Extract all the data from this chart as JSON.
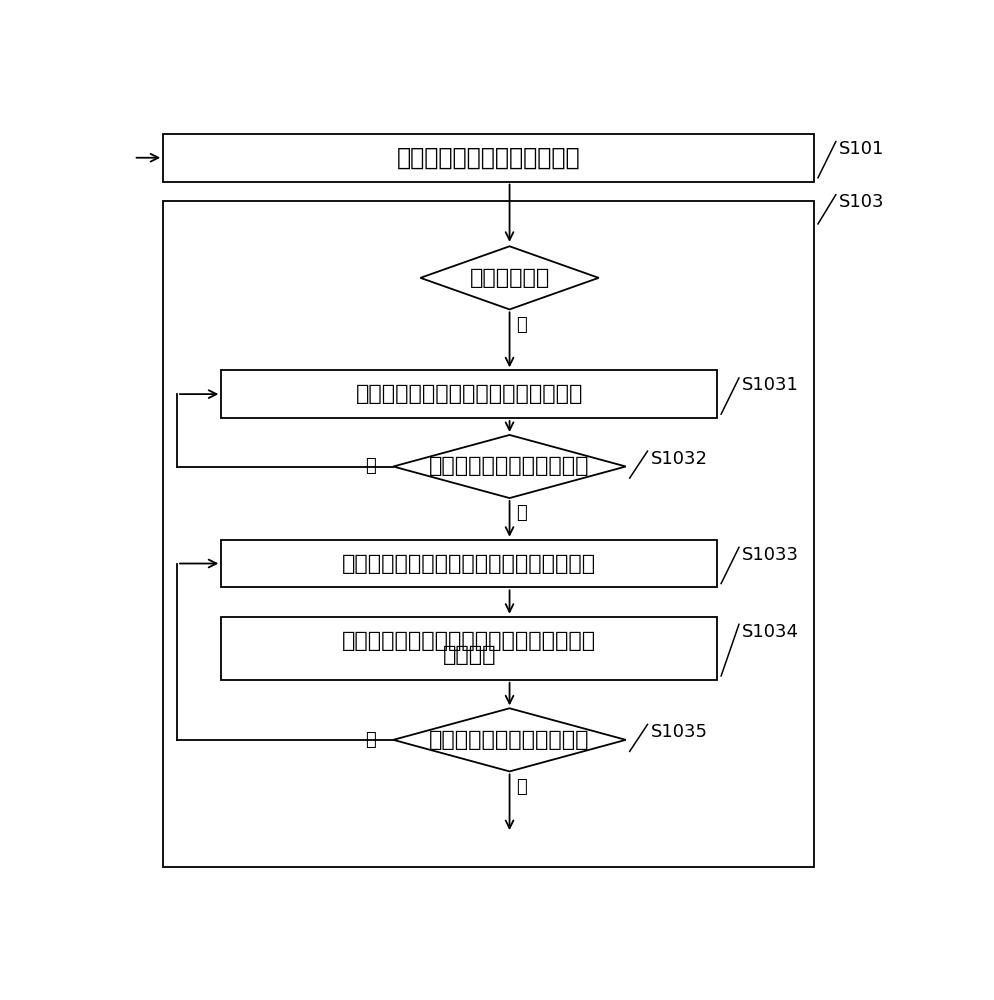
{
  "bg_color": "#ffffff",
  "border_color": "#000000",
  "box_fill": "#ffffff",
  "text_color": "#000000",
  "font_size": 16,
  "label_font_size": 13,
  "title": "实时监测分闸指令和合闸指令",
  "diamond1_text": "分闸指令有效",
  "box1_text": "记录待测断路器分闸时的受迫振动信号",
  "diamond2_text": "判断分闸位置接点是否闭合",
  "box2_text": "记录所述待测断路器分闸时的自由振动信号",
  "box3_line1": "提取所述待测断路器分闸时的自由振动信号",
  "box3_line2": "的特征值",
  "diamond3_text": "判断分闸位置接点是否闭合",
  "label_s101": "S101",
  "label_s103": "S103",
  "label_s1031": "S1031",
  "label_s1032": "S1032",
  "label_s1033": "S1033",
  "label_s1034": "S1034",
  "label_s1035": "S1035",
  "yes_text": "是",
  "no_text": "否"
}
